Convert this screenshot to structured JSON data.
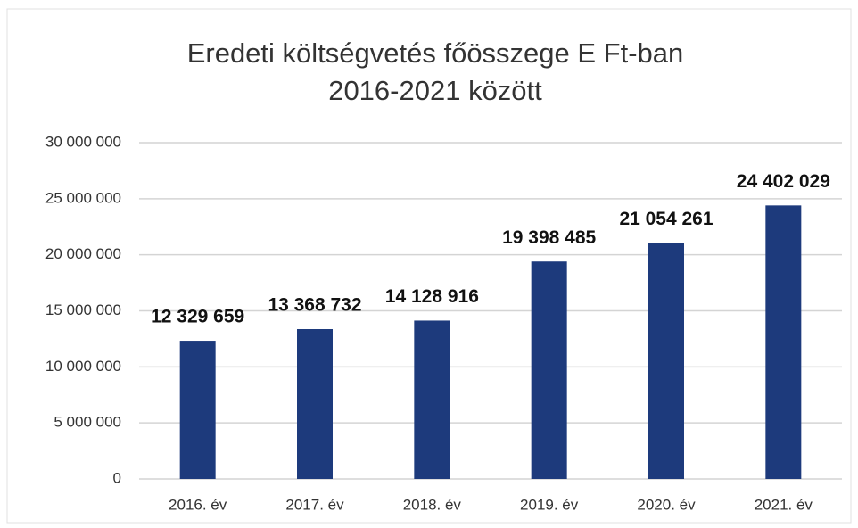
{
  "chart_data": {
    "type": "bar",
    "title": "Eredeti költségvetés főösszege E Ft-ban",
    "subtitle": "2016-2021 között",
    "categories": [
      "2016. év",
      "2017. év",
      "2018. év",
      "2019. év",
      "2020. év",
      "2021. év"
    ],
    "values": [
      12329659,
      13368732,
      14128916,
      19398485,
      21054261,
      24402029
    ],
    "value_labels": [
      "12 329 659",
      "13 368 732",
      "14 128 916",
      "19 398 485",
      "21 054 261",
      "24 402 029"
    ],
    "color": "#1d3a7c",
    "ylim": [
      0,
      30000000
    ],
    "yticks": [
      0,
      {
        "value": 5000000,
        "label": "5 000 000"
      },
      {
        "value": 10000000,
        "label": "10 000 000"
      },
      {
        "value": 15000000,
        "label": "15 000 000"
      },
      {
        "value": 20000000,
        "label": "20 000 000"
      },
      {
        "value": 25000000,
        "label": "25 000 000"
      },
      {
        "value": 30000000,
        "label": "30 000 000"
      }
    ],
    "grid": true
  }
}
